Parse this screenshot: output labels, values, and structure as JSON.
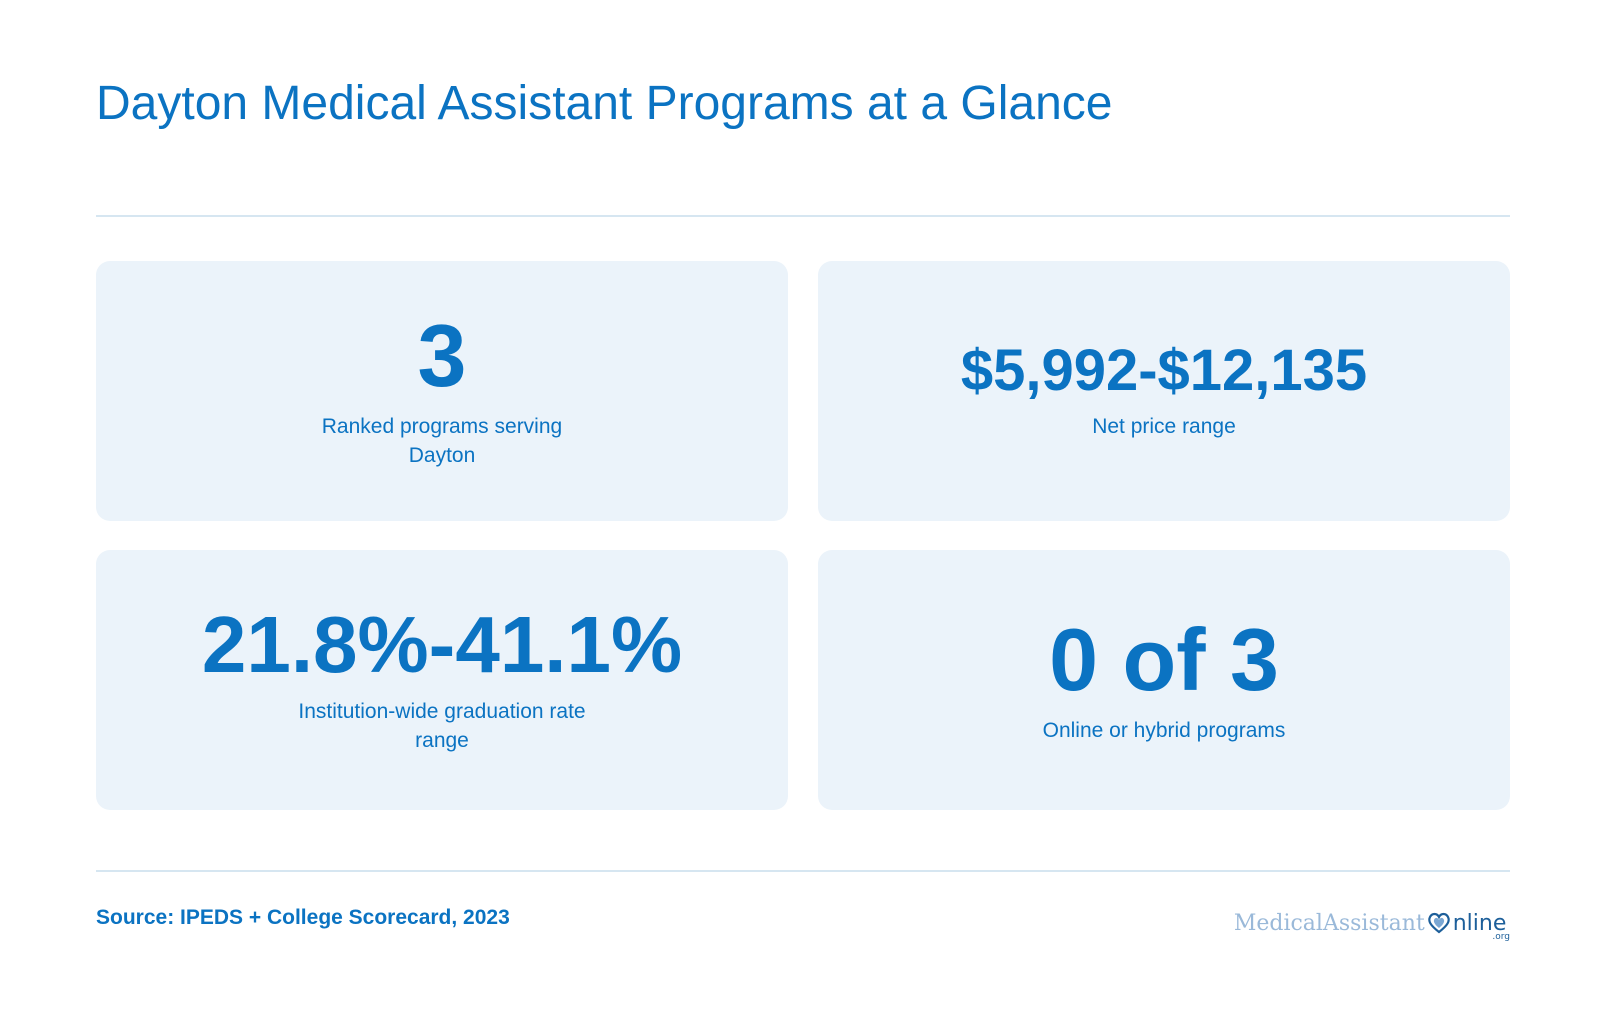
{
  "title": "Dayton Medical Assistant Programs at a Glance",
  "stats": [
    {
      "value": "3",
      "label": "Ranked programs serving Dayton"
    },
    {
      "value": "$5,992-$12,135",
      "label": "Net price range"
    },
    {
      "value": "21.8%-41.1%",
      "label": "Institution-wide graduation rate range"
    },
    {
      "value": "0 of 3",
      "label": "Online or hybrid programs"
    }
  ],
  "source": "Source: IPEDS + College Scorecard, 2023",
  "logo": {
    "part1": "MedicalAssistant",
    "part2": "nline",
    "tld": ".org",
    "icon": "heart-stethoscope-icon"
  },
  "colors": {
    "accent": "#0b73c2",
    "card_bg": "#ebf3fa",
    "rule": "#d6e6f1"
  }
}
